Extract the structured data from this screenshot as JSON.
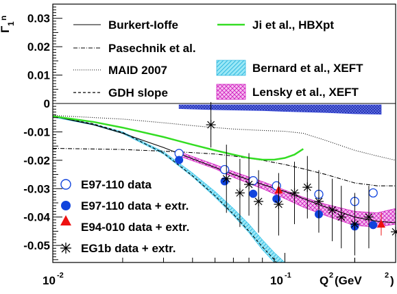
{
  "chart_data": {
    "type": "scatter",
    "xscale": "log",
    "xlim": [
      0.01,
      0.3
    ],
    "ylim": [
      -0.056,
      0.035
    ],
    "grid": false,
    "legend": "in-plot, upper area and lower-left",
    "ylabel_sym": "Γ",
    "ylabel_sub": "1",
    "ylabel_sup": "n",
    "xlabel_main": "Q",
    "xlabel_sup": "2",
    "xlabel_unit": "(GeV",
    "xlabel_unit_sup": "2",
    "xlabel_close": ")",
    "x_tick_labels": [
      {
        "x": 0.01,
        "base": "10",
        "exp": "-2"
      },
      {
        "x": 0.1,
        "base": "10",
        "exp": "-1"
      }
    ],
    "y_tick_labels": [
      {
        "y": 0.03,
        "label": "0.03"
      },
      {
        "y": 0.02,
        "label": "0.02"
      },
      {
        "y": 0.01,
        "label": "0.01"
      },
      {
        "y": 0.0,
        "label": "0"
      },
      {
        "y": -0.01,
        "label": "-0.01"
      },
      {
        "y": -0.02,
        "label": "-0.02"
      },
      {
        "y": -0.03,
        "label": "-0.03"
      },
      {
        "y": -0.04,
        "label": "-0.04"
      },
      {
        "y": -0.05,
        "label": "-0.05"
      }
    ],
    "curves": [
      {
        "name": "Burkert-Ioffe",
        "style": "solid",
        "color": "#000000",
        "x": [
          0.01,
          0.015,
          0.02,
          0.03,
          0.04,
          0.05,
          0.06,
          0.08,
          0.1,
          0.12,
          0.15,
          0.2,
          0.25,
          0.3
        ],
        "y": [
          -0.0045,
          -0.0075,
          -0.0105,
          -0.0155,
          -0.0195,
          -0.0225,
          -0.025,
          -0.0285,
          -0.031,
          -0.0335,
          -0.0365,
          -0.04,
          -0.0415,
          -0.042
        ]
      },
      {
        "name": "Pasechnik et al.",
        "style": "dashdot",
        "color": "#000000",
        "x": [
          0.01,
          0.02,
          0.03,
          0.04,
          0.05,
          0.06,
          0.08,
          0.1,
          0.12,
          0.15,
          0.2,
          0.25,
          0.3
        ],
        "y": [
          -0.0158,
          -0.0162,
          -0.0168,
          -0.0173,
          -0.0178,
          -0.0185,
          -0.02,
          -0.0215,
          -0.023,
          -0.025,
          -0.028,
          -0.029,
          -0.029
        ]
      },
      {
        "name": "MAID 2007",
        "style": "dotted",
        "color": "#000000",
        "x": [
          0.01,
          0.02,
          0.03,
          0.04,
          0.05,
          0.06,
          0.08,
          0.1,
          0.12,
          0.15,
          0.2,
          0.25,
          0.3
        ],
        "y": [
          -0.0042,
          -0.0055,
          -0.0068,
          -0.0078,
          -0.0085,
          -0.009,
          -0.0095,
          -0.0098,
          -0.0105,
          -0.013,
          -0.0165,
          -0.0185,
          -0.02
        ]
      },
      {
        "name": "GDH slope",
        "style": "dashed",
        "color": "#000000",
        "x": [
          0.01,
          0.015,
          0.02,
          0.03,
          0.04,
          0.05,
          0.06,
          0.07,
          0.08,
          0.09,
          0.1
        ],
        "y": [
          -0.0045,
          -0.0072,
          -0.0102,
          -0.0175,
          -0.0255,
          -0.0325,
          -0.039,
          -0.045,
          -0.0505,
          -0.055,
          -0.06
        ]
      },
      {
        "name": "Ji et al., HBXpt",
        "style": "solid",
        "color": "#33dd22",
        "x": [
          0.01,
          0.015,
          0.02,
          0.03,
          0.04,
          0.05,
          0.06,
          0.07,
          0.08,
          0.09,
          0.1,
          0.11,
          0.12
        ],
        "y": [
          -0.0045,
          -0.0065,
          -0.0085,
          -0.0118,
          -0.0145,
          -0.0165,
          -0.018,
          -0.0192,
          -0.0198,
          -0.0198,
          -0.0192,
          -0.018,
          -0.016
        ]
      }
    ],
    "bands": [
      {
        "name": "Bernard et al., XEFT",
        "color": "#44c8ee",
        "fill": "#9be8f6",
        "x": [
          0.01,
          0.015,
          0.02,
          0.03,
          0.04,
          0.05,
          0.06,
          0.07,
          0.08,
          0.09,
          0.1
        ],
        "y_upper": [
          -0.0045,
          -0.0072,
          -0.01,
          -0.017,
          -0.0245,
          -0.031,
          -0.037,
          -0.0425,
          -0.048,
          -0.0525,
          -0.0575
        ],
        "y_lower": [
          -0.0048,
          -0.0076,
          -0.0106,
          -0.0178,
          -0.0258,
          -0.033,
          -0.0395,
          -0.0455,
          -0.0515,
          -0.0565,
          -0.062
        ]
      },
      {
        "name": "Lensky et al., XEFT",
        "color": "#d020c0",
        "fill": "#f0b0ea",
        "x": [
          0.035,
          0.05,
          0.06,
          0.08,
          0.1,
          0.12,
          0.15,
          0.2,
          0.25,
          0.3
        ],
        "y_upper": [
          -0.017,
          -0.0215,
          -0.024,
          -0.0275,
          -0.0305,
          -0.033,
          -0.0355,
          -0.038,
          -0.0385,
          -0.037
        ],
        "y_lower": [
          -0.0185,
          -0.023,
          -0.026,
          -0.03,
          -0.0335,
          -0.0365,
          -0.0395,
          -0.043,
          -0.0435,
          -0.0425
        ]
      }
    ],
    "systematic_band": {
      "color": "#3a4ad8",
      "x": [
        0.035,
        0.05,
        0.08,
        0.1,
        0.15,
        0.2,
        0.26
      ],
      "y_upper": [
        -0.0005,
        -0.0005,
        -0.0005,
        -0.0005,
        -0.0005,
        -0.0005,
        -0.0005
      ],
      "y_lower": [
        -0.0018,
        -0.0022,
        -0.0025,
        -0.0028,
        -0.0032,
        -0.0036,
        -0.0038
      ]
    },
    "series": [
      {
        "name": "E97-110 data",
        "marker": "open-circle",
        "color": "#1144dd",
        "x": [
          0.035,
          0.055,
          0.073,
          0.092,
          0.14,
          0.2,
          0.24
        ],
        "y": [
          -0.0176,
          -0.0233,
          -0.0272,
          -0.029,
          -0.032,
          -0.0345,
          -0.0315
        ],
        "err": [
          0.0012,
          0.0012,
          0.0012,
          0.0012,
          0.0012,
          0.0012,
          0.0012
        ]
      },
      {
        "name": "E97-110 data + extr.",
        "marker": "filled-circle",
        "color": "#1144dd",
        "x": [
          0.035,
          0.055,
          0.073,
          0.092,
          0.14,
          0.2,
          0.24
        ],
        "y": [
          -0.0199,
          -0.0274,
          -0.0318,
          -0.0336,
          -0.039,
          -0.0433,
          -0.0428
        ],
        "err": [
          0.0008,
          0.0008,
          0.0008,
          0.0008,
          0.0008,
          0.0008,
          0.0008
        ]
      },
      {
        "name": "E94-010 data + extr.",
        "marker": "filled-triangle",
        "color": "#ee1111",
        "x": [
          0.094,
          0.26
        ],
        "y": [
          -0.0305,
          -0.0425
        ],
        "err": [
          0.003,
          0.004
        ]
      },
      {
        "name": "EG1b data + extr.",
        "marker": "asterisk",
        "color": "#000000",
        "x": [
          0.048,
          0.056,
          0.064,
          0.07,
          0.077,
          0.094,
          0.11,
          0.125,
          0.14,
          0.16,
          0.175,
          0.2,
          0.23,
          0.3
        ],
        "y": [
          -0.0075,
          -0.0265,
          -0.0315,
          -0.0285,
          -0.0345,
          -0.0355,
          -0.0315,
          -0.0295,
          -0.0345,
          -0.0375,
          -0.04,
          -0.0425,
          -0.04,
          -0.0452
        ],
        "err": [
          0.008,
          0.012,
          0.012,
          0.011,
          0.011,
          0.011,
          0.011,
          0.011,
          0.011,
          0.011,
          0.011,
          0.011,
          0.011,
          0.011
        ]
      }
    ]
  }
}
